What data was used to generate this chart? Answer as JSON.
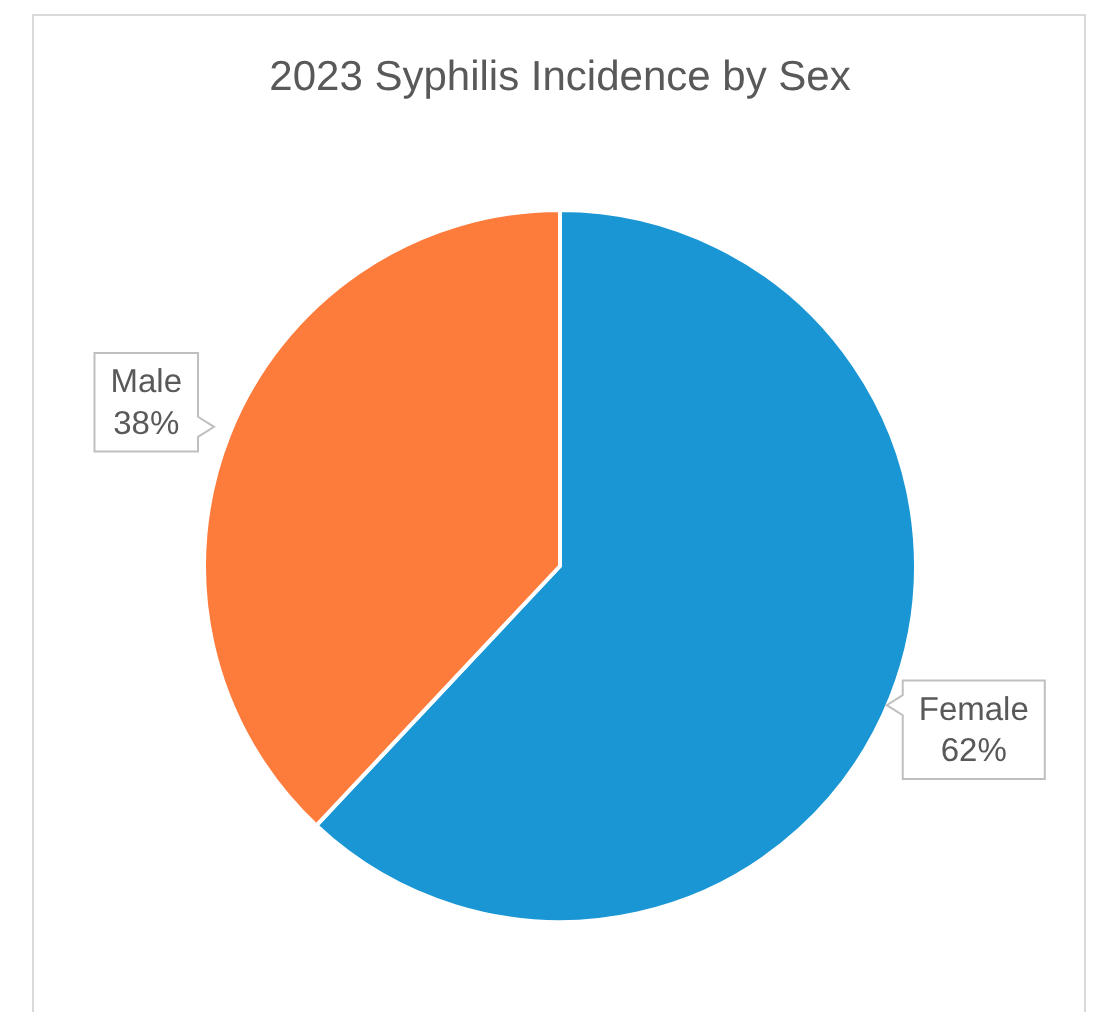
{
  "chart_data": {
    "type": "pie",
    "title": "2023 Syphilis Incidence by Sex",
    "categories": [
      "Female",
      "Male"
    ],
    "values": [
      62,
      38
    ],
    "colors": [
      "#1a96d4",
      "#fd7c3c"
    ],
    "value_labels": [
      "62%",
      "38%"
    ]
  }
}
